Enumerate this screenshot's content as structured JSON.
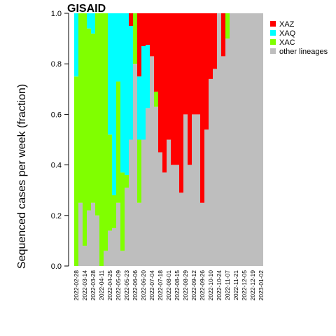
{
  "chart_data": {
    "type": "stacked_bar",
    "title": "GISAID",
    "y_label": "Sequenced cases per week (fraction)",
    "categories": [
      "2022-02-28",
      null,
      "2022-03-14",
      null,
      "2022-03-28",
      null,
      "2022-04-11",
      null,
      "2022-04-25",
      null,
      "2022-05-09",
      null,
      "2022-05-23",
      null,
      "2022-06-06",
      null,
      "2022-06-20",
      null,
      "2022-07-04",
      null,
      "2022-07-18",
      null,
      "2022-08-01",
      null,
      "2022-08-15",
      null,
      "2022-08-29",
      null,
      "2022-09-12",
      null,
      "2022-09-26",
      null,
      "2022-10-10",
      null,
      "2022-10-24",
      null,
      "2022-11-07",
      null,
      "2022-11-21",
      null,
      "2022-12-05",
      null,
      "2022-12-19",
      null,
      "2023-01-02"
    ],
    "series": [
      {
        "name": "XAZ",
        "color": "#ff0000",
        "values": [
          0,
          0,
          0,
          0,
          0,
          0,
          0,
          0,
          0,
          0,
          0,
          0,
          0,
          0.05,
          0,
          0.25,
          0.13,
          0.125,
          0.17,
          0.31,
          0.55,
          0.63,
          0.5,
          0.6,
          0.6,
          0.71,
          0.4,
          0.6,
          0.4,
          0.4,
          0.75,
          0.46,
          0.26,
          0.22,
          0,
          0.17,
          0,
          0,
          0,
          0,
          0,
          0,
          0,
          0,
          0
        ]
      },
      {
        "name": "XAQ",
        "color": "#00ffff",
        "values": [
          0.25,
          0,
          0,
          0.06,
          0.08,
          0,
          0,
          0,
          0.48,
          0.72,
          0.27,
          0.63,
          0.64,
          0.45,
          0,
          0.25,
          0.37,
          0.25,
          0,
          0,
          0,
          0,
          0,
          0,
          0,
          0,
          0,
          0,
          0,
          0,
          0,
          0,
          0,
          0,
          0,
          0,
          0,
          0,
          0,
          0,
          0,
          0,
          0,
          0,
          0
        ]
      },
      {
        "name": "XAC",
        "color": "#80ff00",
        "values": [
          0.75,
          0.75,
          0.92,
          0.72,
          0.67,
          0.8,
          1,
          0.94,
          0.38,
          0.13,
          0.48,
          0.31,
          0.05,
          0,
          0.2,
          0.25,
          0,
          0,
          0,
          0.06,
          0,
          0,
          0,
          0,
          0,
          0,
          0,
          0,
          0,
          0,
          0,
          0,
          0,
          0,
          0,
          0,
          0.1,
          0,
          0,
          0,
          0,
          0,
          0,
          0,
          0
        ]
      },
      {
        "name": "other lineages",
        "color": "#bebebe",
        "values": [
          0,
          0.25,
          0.08,
          0.22,
          0.25,
          0.2,
          0,
          0.06,
          0.14,
          0.15,
          0.25,
          0.06,
          0.31,
          0.5,
          0.8,
          0.25,
          0.5,
          0.625,
          0.83,
          0.63,
          0.45,
          0.37,
          0.5,
          0.4,
          0.4,
          0.29,
          0.6,
          0.4,
          0.6,
          0.6,
          0.25,
          0.54,
          0.74,
          0.78,
          1,
          0.83,
          0.9,
          1,
          1,
          1,
          1,
          1,
          1,
          1,
          1
        ]
      }
    ],
    "ylim": [
      0,
      1
    ],
    "yticks": [
      {
        "value": 0,
        "label": "0.0"
      },
      0.2,
      0.4,
      0.6,
      0.8,
      {
        "value": 1,
        "label": "1.0"
      }
    ],
    "legend": "top-right"
  }
}
